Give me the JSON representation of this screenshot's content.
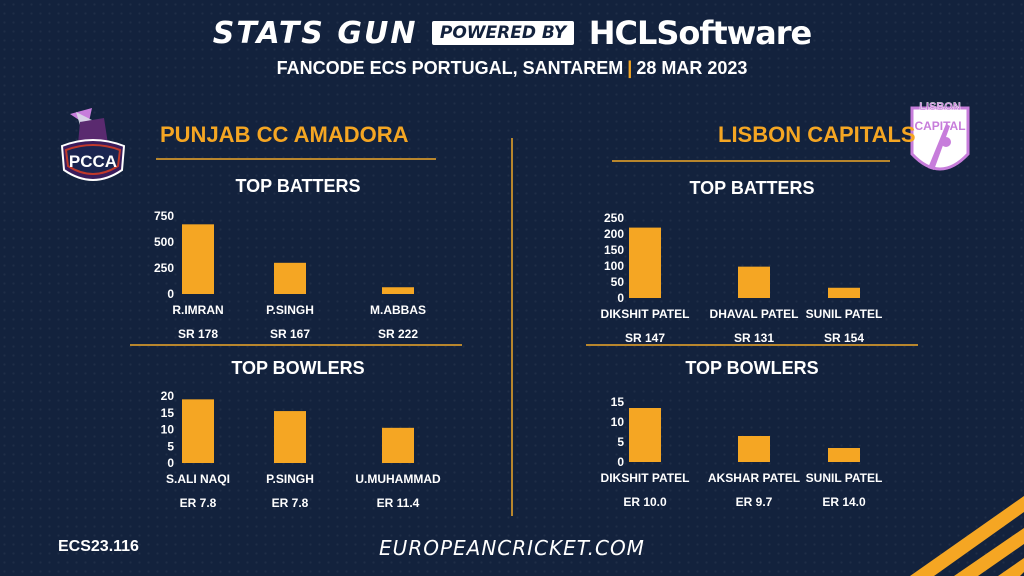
{
  "header": {
    "stats_gun": "STATS GUN",
    "powered_by": "POWERED BY",
    "hcl": "HCLSoftware",
    "subtitle": "FANCODE ECS PORTUGAL,  SANTAREM",
    "date": "28 MAR 2023"
  },
  "teams": {
    "left": {
      "name": "PUNJAB CC AMADORA",
      "logo_text": "PCCA"
    },
    "right": {
      "name": "LISBON CAPITALS",
      "logo_text_top": "LISBON",
      "logo_text_bottom": "CAPITAL"
    }
  },
  "chart_data": [
    {
      "id": "left_batters",
      "type": "bar",
      "title": "TOP BATTERS",
      "categories": [
        "R.IMRAN",
        "P.SINGH",
        "M.ABBAS"
      ],
      "values": [
        670,
        300,
        65
      ],
      "sub_labels": [
        "SR 178",
        "SR 167",
        "SR 222"
      ],
      "yticks": [
        0,
        250,
        500,
        750
      ],
      "ylim": [
        0,
        750
      ],
      "color": "#f5a623"
    },
    {
      "id": "left_bowlers",
      "type": "bar",
      "title": "TOP BOWLERS",
      "categories": [
        "S.ALI NAQI",
        "P.SINGH",
        "U.MUHAMMAD"
      ],
      "values": [
        19,
        15.5,
        10.5
      ],
      "sub_labels": [
        "ER  7.8",
        "ER 7.8",
        "ER 11.4"
      ],
      "yticks": [
        0,
        5,
        10,
        15,
        20
      ],
      "ylim": [
        0,
        20
      ],
      "color": "#f5a623"
    },
    {
      "id": "right_batters",
      "type": "bar",
      "title": "TOP BATTERS",
      "categories": [
        "DIKSHIT PATEL",
        "DHAVAL PATEL",
        "SUNIL PATEL"
      ],
      "values": [
        220,
        98,
        32
      ],
      "sub_labels": [
        "SR 147",
        "SR 131",
        "SR 154"
      ],
      "yticks": [
        0,
        50,
        100,
        150,
        200,
        250
      ],
      "ylim": [
        0,
        250
      ],
      "color": "#f5a623"
    },
    {
      "id": "right_bowlers",
      "type": "bar",
      "title": "TOP BOWLERS",
      "categories": [
        "DIKSHIT PATEL",
        "AKSHAR PATEL",
        "SUNIL PATEL"
      ],
      "values": [
        13.5,
        6.5,
        3.5
      ],
      "sub_labels": [
        "ER 10.0",
        "ER 9.7",
        "ER 14.0"
      ],
      "yticks": [
        0,
        5,
        10,
        15
      ],
      "ylim": [
        0,
        15
      ],
      "color": "#f5a623"
    }
  ],
  "footer": {
    "code": "ECS23.116",
    "website": "EUROPEANCRICKET.COM"
  },
  "colors": {
    "background": "#13223d",
    "accent": "#f5a623",
    "rule": "#b8862d",
    "logo_purple": "#c77ddb"
  }
}
